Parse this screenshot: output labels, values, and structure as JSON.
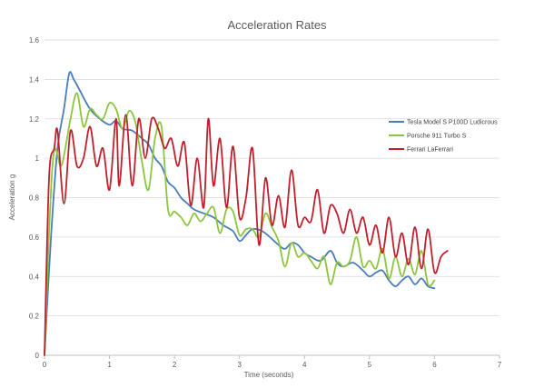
{
  "chart_data": {
    "type": "line",
    "title": "Acceleration Rates",
    "xlabel": "Time (seconds)",
    "ylabel": "Acceleration g",
    "xlim": [
      0,
      7
    ],
    "ylim": [
      0,
      1.6
    ],
    "x_ticks": [
      "0",
      "1",
      "2",
      "3",
      "4",
      "5",
      "6",
      "7"
    ],
    "y_ticks": [
      "0",
      "0.2",
      "0.4",
      "0.6",
      "0.8",
      "1",
      "1.2",
      "1.4",
      "1.6"
    ],
    "grid": "horizontal",
    "legend_position": "right",
    "series": [
      {
        "name": "Tesla Model S P100D Ludicrous",
        "color": "#4a7ebb",
        "points": [
          [
            0,
            0
          ],
          [
            0.1,
            0.6
          ],
          [
            0.2,
            1.05
          ],
          [
            0.3,
            1.25
          ],
          [
            0.38,
            1.43
          ],
          [
            0.45,
            1.4
          ],
          [
            0.55,
            1.34
          ],
          [
            0.7,
            1.25
          ],
          [
            0.85,
            1.2
          ],
          [
            1.0,
            1.17
          ],
          [
            1.1,
            1.19
          ],
          [
            1.2,
            1.15
          ],
          [
            1.35,
            1.14
          ],
          [
            1.5,
            1.1
          ],
          [
            1.6,
            1.07
          ],
          [
            1.7,
            1.0
          ],
          [
            1.8,
            0.96
          ],
          [
            1.9,
            0.88
          ],
          [
            2.0,
            0.85
          ],
          [
            2.1,
            0.8
          ],
          [
            2.2,
            0.77
          ],
          [
            2.3,
            0.74
          ],
          [
            2.45,
            0.72
          ],
          [
            2.6,
            0.7
          ],
          [
            2.75,
            0.66
          ],
          [
            2.9,
            0.63
          ],
          [
            3.0,
            0.58
          ],
          [
            3.1,
            0.61
          ],
          [
            3.2,
            0.64
          ],
          [
            3.35,
            0.63
          ],
          [
            3.5,
            0.59
          ],
          [
            3.6,
            0.56
          ],
          [
            3.7,
            0.54
          ],
          [
            3.8,
            0.57
          ],
          [
            3.9,
            0.56
          ],
          [
            4.0,
            0.52
          ],
          [
            4.1,
            0.5
          ],
          [
            4.25,
            0.48
          ],
          [
            4.4,
            0.53
          ],
          [
            4.5,
            0.47
          ],
          [
            4.6,
            0.45
          ],
          [
            4.75,
            0.47
          ],
          [
            4.9,
            0.43
          ],
          [
            5.0,
            0.4
          ],
          [
            5.1,
            0.42
          ],
          [
            5.2,
            0.43
          ],
          [
            5.3,
            0.38
          ],
          [
            5.4,
            0.35
          ],
          [
            5.5,
            0.38
          ],
          [
            5.6,
            0.4
          ],
          [
            5.7,
            0.36
          ],
          [
            5.8,
            0.39
          ],
          [
            5.9,
            0.35
          ],
          [
            6.0,
            0.34
          ]
        ]
      },
      {
        "name": "Porsche 911 Turbo S",
        "color": "#8cc63e",
        "points": [
          [
            0,
            0
          ],
          [
            0.08,
            0.7
          ],
          [
            0.15,
            1.04
          ],
          [
            0.25,
            0.96
          ],
          [
            0.32,
            1.05
          ],
          [
            0.4,
            1.2
          ],
          [
            0.5,
            1.33
          ],
          [
            0.6,
            1.16
          ],
          [
            0.7,
            1.25
          ],
          [
            0.8,
            1.22
          ],
          [
            0.9,
            1.2
          ],
          [
            1.0,
            1.28
          ],
          [
            1.1,
            1.25
          ],
          [
            1.2,
            1.15
          ],
          [
            1.3,
            1.24
          ],
          [
            1.4,
            1.18
          ],
          [
            1.5,
            0.98
          ],
          [
            1.6,
            0.84
          ],
          [
            1.7,
            1.1
          ],
          [
            1.8,
            1.16
          ],
          [
            1.9,
            0.74
          ],
          [
            2.0,
            0.73
          ],
          [
            2.1,
            0.7
          ],
          [
            2.2,
            0.66
          ],
          [
            2.3,
            0.72
          ],
          [
            2.4,
            0.68
          ],
          [
            2.5,
            0.72
          ],
          [
            2.6,
            0.75
          ],
          [
            2.7,
            0.62
          ],
          [
            2.8,
            0.74
          ],
          [
            2.9,
            0.73
          ],
          [
            3.0,
            0.61
          ],
          [
            3.1,
            0.64
          ],
          [
            3.2,
            0.64
          ],
          [
            3.3,
            0.6
          ],
          [
            3.4,
            0.72
          ],
          [
            3.5,
            0.65
          ],
          [
            3.6,
            0.58
          ],
          [
            3.7,
            0.45
          ],
          [
            3.8,
            0.57
          ],
          [
            3.9,
            0.5
          ],
          [
            4.0,
            0.52
          ],
          [
            4.1,
            0.48
          ],
          [
            4.2,
            0.44
          ],
          [
            4.3,
            0.5
          ],
          [
            4.4,
            0.36
          ],
          [
            4.5,
            0.47
          ],
          [
            4.6,
            0.45
          ],
          [
            4.7,
            0.48
          ],
          [
            4.8,
            0.6
          ],
          [
            4.9,
            0.45
          ],
          [
            5.0,
            0.48
          ],
          [
            5.1,
            0.44
          ],
          [
            5.2,
            0.54
          ],
          [
            5.3,
            0.39
          ],
          [
            5.4,
            0.5
          ],
          [
            5.5,
            0.4
          ],
          [
            5.6,
            0.49
          ],
          [
            5.7,
            0.41
          ],
          [
            5.8,
            0.53
          ],
          [
            5.9,
            0.36
          ],
          [
            6.0,
            0.38
          ]
        ]
      },
      {
        "name": "Ferrari LaFerrari",
        "color": "#c0202c",
        "points": [
          [
            0,
            0
          ],
          [
            0.07,
            0.9
          ],
          [
            0.15,
            1.05
          ],
          [
            0.2,
            1.14
          ],
          [
            0.3,
            0.77
          ],
          [
            0.4,
            1.14
          ],
          [
            0.5,
            0.96
          ],
          [
            0.6,
            1.0
          ],
          [
            0.7,
            1.16
          ],
          [
            0.8,
            0.96
          ],
          [
            0.9,
            1.05
          ],
          [
            1.0,
            0.84
          ],
          [
            1.1,
            1.2
          ],
          [
            1.15,
            0.86
          ],
          [
            1.25,
            1.22
          ],
          [
            1.35,
            0.86
          ],
          [
            1.45,
            1.2
          ],
          [
            1.55,
            1.0
          ],
          [
            1.65,
            1.2
          ],
          [
            1.75,
            1.15
          ],
          [
            1.85,
            1.05
          ],
          [
            1.95,
            1.1
          ],
          [
            2.05,
            0.96
          ],
          [
            2.15,
            1.08
          ],
          [
            2.25,
            0.76
          ],
          [
            2.35,
            1.0
          ],
          [
            2.45,
            0.75
          ],
          [
            2.52,
            1.2
          ],
          [
            2.6,
            0.86
          ],
          [
            2.7,
            1.1
          ],
          [
            2.8,
            0.75
          ],
          [
            2.9,
            1.06
          ],
          [
            3.0,
            0.7
          ],
          [
            3.1,
            0.8
          ],
          [
            3.2,
            1.05
          ],
          [
            3.3,
            0.56
          ],
          [
            3.4,
            0.9
          ],
          [
            3.5,
            0.66
          ],
          [
            3.6,
            0.81
          ],
          [
            3.7,
            0.65
          ],
          [
            3.8,
            0.94
          ],
          [
            3.9,
            0.66
          ],
          [
            4.0,
            0.7
          ],
          [
            4.1,
            0.68
          ],
          [
            4.2,
            0.84
          ],
          [
            4.3,
            0.62
          ],
          [
            4.4,
            0.76
          ],
          [
            4.5,
            0.72
          ],
          [
            4.6,
            0.62
          ],
          [
            4.7,
            0.74
          ],
          [
            4.8,
            0.62
          ],
          [
            4.9,
            0.7
          ],
          [
            5.0,
            0.56
          ],
          [
            5.1,
            0.66
          ],
          [
            5.2,
            0.52
          ],
          [
            5.3,
            0.7
          ],
          [
            5.4,
            0.5
          ],
          [
            5.5,
            0.62
          ],
          [
            5.6,
            0.46
          ],
          [
            5.7,
            0.65
          ],
          [
            5.8,
            0.44
          ],
          [
            5.9,
            0.64
          ],
          [
            6.0,
            0.42
          ],
          [
            6.1,
            0.5
          ],
          [
            6.2,
            0.53
          ]
        ]
      }
    ]
  }
}
